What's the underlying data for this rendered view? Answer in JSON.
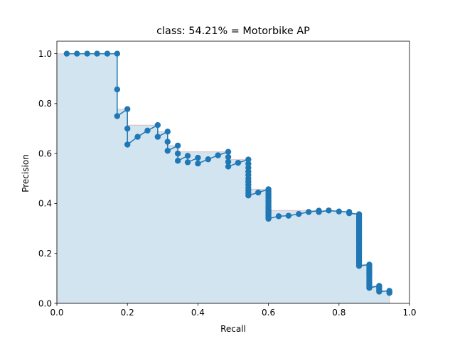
{
  "chart_data": {
    "type": "line",
    "title": "class: 54.21% = Motorbike AP",
    "xlabel": "Recall",
    "ylabel": "Precision",
    "xlim": [
      0.0,
      1.0
    ],
    "ylim": [
      0.0,
      1.05
    ],
    "xticks": [
      "0.0",
      "0.2",
      "0.4",
      "0.6",
      "0.8",
      "1.0"
    ],
    "yticks": [
      "0.0",
      "0.2",
      "0.4",
      "0.6",
      "0.8",
      "1.0"
    ],
    "xtick_values": [
      0.0,
      0.2,
      0.4,
      0.6,
      0.8,
      1.0
    ],
    "ytick_values": [
      0.0,
      0.2,
      0.4,
      0.6,
      0.8,
      1.0
    ],
    "grid": false,
    "legend": "none",
    "line_color": "#1f77b4",
    "fill_color": "#1f77b4",
    "interp_color": "#d62728",
    "precision_recall": [
      [
        0.028,
        1.0
      ],
      [
        0.057,
        1.0
      ],
      [
        0.086,
        1.0
      ],
      [
        0.114,
        1.0
      ],
      [
        0.143,
        1.0
      ],
      [
        0.171,
        1.0
      ],
      [
        0.171,
        0.857
      ],
      [
        0.171,
        0.75
      ],
      [
        0.2,
        0.778
      ],
      [
        0.2,
        0.7
      ],
      [
        0.2,
        0.636
      ],
      [
        0.229,
        0.667
      ],
      [
        0.257,
        0.692
      ],
      [
        0.286,
        0.714
      ],
      [
        0.286,
        0.667
      ],
      [
        0.314,
        0.688
      ],
      [
        0.314,
        0.647
      ],
      [
        0.314,
        0.611
      ],
      [
        0.343,
        0.632
      ],
      [
        0.343,
        0.6
      ],
      [
        0.343,
        0.571
      ],
      [
        0.371,
        0.591
      ],
      [
        0.371,
        0.565
      ],
      [
        0.4,
        0.583
      ],
      [
        0.4,
        0.56
      ],
      [
        0.429,
        0.577
      ],
      [
        0.457,
        0.593
      ],
      [
        0.486,
        0.607
      ],
      [
        0.486,
        0.586
      ],
      [
        0.486,
        0.567
      ],
      [
        0.486,
        0.548
      ],
      [
        0.514,
        0.563
      ],
      [
        0.543,
        0.576
      ],
      [
        0.543,
        0.559
      ],
      [
        0.543,
        0.543
      ],
      [
        0.543,
        0.528
      ],
      [
        0.543,
        0.514
      ],
      [
        0.543,
        0.5
      ],
      [
        0.543,
        0.487
      ],
      [
        0.543,
        0.475
      ],
      [
        0.543,
        0.463
      ],
      [
        0.543,
        0.452
      ],
      [
        0.543,
        0.442
      ],
      [
        0.543,
        0.432
      ],
      [
        0.571,
        0.444
      ],
      [
        0.6,
        0.457
      ],
      [
        0.6,
        0.447
      ],
      [
        0.6,
        0.438
      ],
      [
        0.6,
        0.429
      ],
      [
        0.6,
        0.42
      ],
      [
        0.6,
        0.412
      ],
      [
        0.6,
        0.404
      ],
      [
        0.6,
        0.396
      ],
      [
        0.6,
        0.389
      ],
      [
        0.6,
        0.382
      ],
      [
        0.6,
        0.375
      ],
      [
        0.6,
        0.368
      ],
      [
        0.6,
        0.362
      ],
      [
        0.6,
        0.356
      ],
      [
        0.6,
        0.35
      ],
      [
        0.6,
        0.344
      ],
      [
        0.6,
        0.339
      ],
      [
        0.629,
        0.349
      ],
      [
        0.657,
        0.351
      ],
      [
        0.686,
        0.358
      ],
      [
        0.714,
        0.366
      ],
      [
        0.743,
        0.371
      ],
      [
        0.743,
        0.366
      ],
      [
        0.771,
        0.372
      ],
      [
        0.8,
        0.368
      ],
      [
        0.829,
        0.366
      ],
      [
        0.829,
        0.361
      ],
      [
        0.857,
        0.357
      ],
      [
        0.857,
        0.349
      ],
      [
        0.857,
        0.341
      ],
      [
        0.857,
        0.333
      ],
      [
        0.857,
        0.325
      ],
      [
        0.857,
        0.318
      ],
      [
        0.857,
        0.31
      ],
      [
        0.857,
        0.302
      ],
      [
        0.857,
        0.294
      ],
      [
        0.857,
        0.286
      ],
      [
        0.857,
        0.278
      ],
      [
        0.857,
        0.27
      ],
      [
        0.857,
        0.262
      ],
      [
        0.857,
        0.254
      ],
      [
        0.857,
        0.246
      ],
      [
        0.857,
        0.238
      ],
      [
        0.857,
        0.23
      ],
      [
        0.857,
        0.222
      ],
      [
        0.857,
        0.214
      ],
      [
        0.857,
        0.206
      ],
      [
        0.857,
        0.198
      ],
      [
        0.857,
        0.19
      ],
      [
        0.857,
        0.182
      ],
      [
        0.857,
        0.174
      ],
      [
        0.857,
        0.166
      ],
      [
        0.857,
        0.158
      ],
      [
        0.857,
        0.15
      ],
      [
        0.886,
        0.155
      ],
      [
        0.886,
        0.148
      ],
      [
        0.886,
        0.14
      ],
      [
        0.886,
        0.132
      ],
      [
        0.886,
        0.124
      ],
      [
        0.886,
        0.116
      ],
      [
        0.886,
        0.108
      ],
      [
        0.886,
        0.1
      ],
      [
        0.886,
        0.092
      ],
      [
        0.886,
        0.084
      ],
      [
        0.886,
        0.076
      ],
      [
        0.886,
        0.068
      ],
      [
        0.886,
        0.062
      ],
      [
        0.914,
        0.07
      ],
      [
        0.914,
        0.064
      ],
      [
        0.914,
        0.058
      ],
      [
        0.914,
        0.052
      ],
      [
        0.914,
        0.047
      ],
      [
        0.943,
        0.05
      ],
      [
        0.943,
        0.046
      ],
      [
        0.943,
        0.042
      ]
    ]
  }
}
